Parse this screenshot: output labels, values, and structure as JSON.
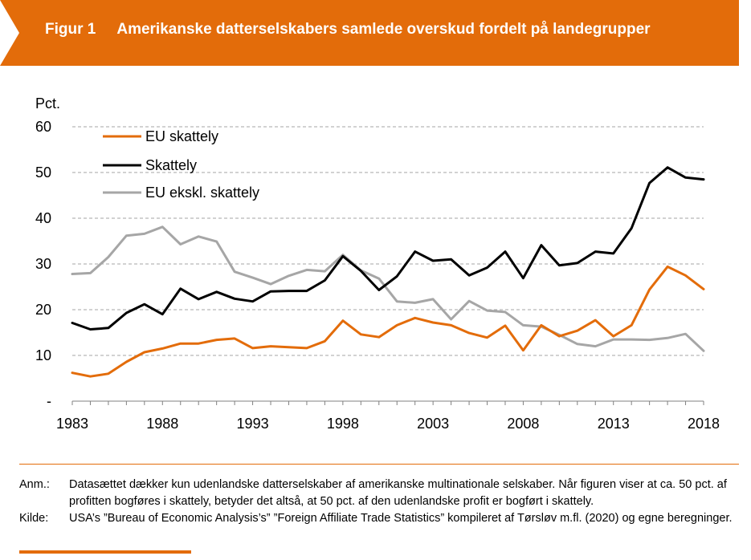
{
  "header": {
    "figure_label": "Figur 1",
    "title": "Amerikanske datterselskabers samlede overskud fordelt på landegrupper",
    "color": "#E36C0A"
  },
  "chart_data": {
    "type": "line",
    "ylabel": "Pct.",
    "ylim": [
      0,
      60
    ],
    "yticks": [
      0,
      10,
      20,
      30,
      40,
      50,
      60
    ],
    "ytick_labels": [
      "-",
      "10",
      "20",
      "30",
      "40",
      "50",
      "60"
    ],
    "xlim": [
      1983,
      2018
    ],
    "xticks": [
      1983,
      1988,
      1993,
      1998,
      2003,
      2008,
      2013,
      2018
    ],
    "grid": "horizontal dashed",
    "legend_position": "top-left",
    "x": [
      1983,
      1984,
      1985,
      1986,
      1987,
      1988,
      1989,
      1990,
      1991,
      1992,
      1993,
      1994,
      1995,
      1996,
      1997,
      1998,
      1999,
      2000,
      2001,
      2002,
      2003,
      2004,
      2005,
      2006,
      2007,
      2008,
      2009,
      2010,
      2011,
      2012,
      2013,
      2014,
      2015,
      2016,
      2017,
      2018
    ],
    "series": [
      {
        "name": "EU skattely",
        "color": "#E36C0A",
        "values": [
          6.2,
          5.4,
          6.0,
          8.6,
          10.7,
          11.5,
          12.6,
          12.6,
          13.4,
          13.7,
          11.6,
          12.0,
          11.8,
          11.6,
          13.1,
          17.6,
          14.6,
          14.0,
          16.6,
          18.2,
          17.2,
          16.6,
          14.9,
          13.9,
          16.5,
          11.1,
          16.6,
          14.2,
          15.4,
          17.7,
          14.2,
          16.6,
          24.4,
          29.4,
          27.5,
          24.5
        ]
      },
      {
        "name": "Skattely",
        "color": "#000000",
        "values": [
          17.1,
          15.7,
          16.0,
          19.3,
          21.2,
          19.0,
          24.6,
          22.3,
          23.9,
          22.4,
          21.8,
          24.0,
          24.1,
          24.1,
          26.4,
          31.7,
          28.5,
          24.3,
          27.3,
          32.7,
          30.7,
          31.0,
          27.5,
          29.2,
          32.7,
          26.9,
          34.1,
          29.7,
          30.2,
          32.7,
          32.3,
          37.8,
          47.7,
          51.1,
          48.9,
          48.5
        ]
      },
      {
        "name": "EU ekskl. skattely",
        "color": "#A6A6A6",
        "values": [
          27.8,
          28.0,
          31.5,
          36.2,
          36.6,
          38.1,
          34.3,
          36.0,
          34.9,
          28.3,
          27.0,
          25.6,
          27.4,
          28.7,
          28.4,
          32.0,
          28.6,
          26.8,
          21.8,
          21.5,
          22.3,
          17.9,
          21.9,
          19.8,
          19.5,
          16.6,
          16.3,
          14.5,
          12.5,
          12.0,
          13.5,
          13.5,
          13.4,
          13.8,
          14.7,
          11.0
        ]
      }
    ]
  },
  "notes": {
    "anm_label": "Anm.:",
    "anm_text": "Datasættet dækker kun udenlandske datterselskaber af amerikanske multinationale selskaber. Når figuren viser at ca. 50 pct. af profitten bogføres i skattely, betyder det altså, at 50 pct. af den udenlandske profit er bogført i skattely.",
    "kilde_label": "Kilde:",
    "kilde_text": "USA’s ”Bureau of Economic Analysis’s” ”Foreign Affiliate Trade Statistics” kompileret af Tørsløv m.fl. (2020) og egne beregninger."
  }
}
